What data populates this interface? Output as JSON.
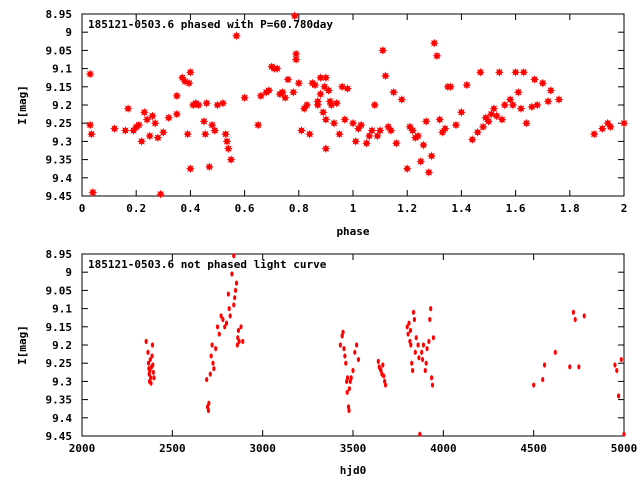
{
  "chart_data": [
    {
      "type": "scatter",
      "title": "185121-0503.6 phased with P=60.780day",
      "xlabel": "phase",
      "ylabel": "I[mag]",
      "xlim": [
        0,
        2
      ],
      "ylim": [
        9.45,
        8.95
      ],
      "y_inverted": true,
      "grid": false,
      "legend": "none",
      "marker_color": "#ff0000",
      "marker": "star",
      "x_ticks": [
        "0",
        "0.2",
        "0.4",
        "0.6",
        "0.8",
        "1",
        "1.2",
        "1.4",
        "1.6",
        "1.8",
        "2"
      ],
      "y_ticks": [
        "8.95",
        "9",
        "9.05",
        "9.1",
        "9.15",
        "9.2",
        "9.25",
        "9.3",
        "9.35",
        "9.4",
        "9.45"
      ],
      "points": [
        [
          0.03,
          9.115
        ],
        [
          0.03,
          9.255
        ],
        [
          0.035,
          9.28
        ],
        [
          0.04,
          9.44
        ],
        [
          0.12,
          9.265
        ],
        [
          0.16,
          9.27
        ],
        [
          0.17,
          9.21
        ],
        [
          0.19,
          9.27
        ],
        [
          0.2,
          9.26
        ],
        [
          0.21,
          9.255
        ],
        [
          0.22,
          9.3
        ],
        [
          0.23,
          9.22
        ],
        [
          0.24,
          9.24
        ],
        [
          0.25,
          9.285
        ],
        [
          0.26,
          9.23
        ],
        [
          0.27,
          9.25
        ],
        [
          0.28,
          9.29
        ],
        [
          0.29,
          9.445
        ],
        [
          0.3,
          9.275
        ],
        [
          0.32,
          9.235
        ],
        [
          0.35,
          9.175
        ],
        [
          0.35,
          9.225
        ],
        [
          0.37,
          9.125
        ],
        [
          0.38,
          9.135
        ],
        [
          0.39,
          9.28
        ],
        [
          0.395,
          9.14
        ],
        [
          0.4,
          9.375
        ],
        [
          0.4,
          9.11
        ],
        [
          0.41,
          9.2
        ],
        [
          0.42,
          9.195
        ],
        [
          0.43,
          9.2
        ],
        [
          0.45,
          9.245
        ],
        [
          0.455,
          9.28
        ],
        [
          0.46,
          9.195
        ],
        [
          0.47,
          9.37
        ],
        [
          0.48,
          9.255
        ],
        [
          0.49,
          9.27
        ],
        [
          0.5,
          9.2
        ],
        [
          0.52,
          9.195
        ],
        [
          0.53,
          9.28
        ],
        [
          0.535,
          9.3
        ],
        [
          0.54,
          9.32
        ],
        [
          0.55,
          9.35
        ],
        [
          0.57,
          9.01
        ],
        [
          0.6,
          9.18
        ],
        [
          0.65,
          9.255
        ],
        [
          0.66,
          9.175
        ],
        [
          0.68,
          9.165
        ],
        [
          0.69,
          9.16
        ],
        [
          0.7,
          9.095
        ],
        [
          0.71,
          9.1
        ],
        [
          0.72,
          9.1
        ],
        [
          0.73,
          9.17
        ],
        [
          0.74,
          9.165
        ],
        [
          0.75,
          9.18
        ],
        [
          0.76,
          9.13
        ],
        [
          0.78,
          9.165
        ],
        [
          0.785,
          8.955
        ],
        [
          0.79,
          9.06
        ],
        [
          0.79,
          9.075
        ],
        [
          0.8,
          9.14
        ],
        [
          0.81,
          9.27
        ],
        [
          0.82,
          9.21
        ],
        [
          0.83,
          9.2
        ],
        [
          0.84,
          9.28
        ],
        [
          0.85,
          9.14
        ],
        [
          0.86,
          9.145
        ],
        [
          0.87,
          9.19
        ],
        [
          0.87,
          9.2
        ],
        [
          0.88,
          9.125
        ],
        [
          0.88,
          9.17
        ],
        [
          0.89,
          9.22
        ],
        [
          0.895,
          9.15
        ],
        [
          0.9,
          9.125
        ],
        [
          0.9,
          9.24
        ],
        [
          0.9,
          9.32
        ],
        [
          0.91,
          9.16
        ],
        [
          0.915,
          9.19
        ],
        [
          0.92,
          9.2
        ],
        [
          0.93,
          9.25
        ],
        [
          0.94,
          9.195
        ],
        [
          0.95,
          9.28
        ],
        [
          0.96,
          9.15
        ],
        [
          0.97,
          9.24
        ],
        [
          0.98,
          9.155
        ],
        [
          1.0,
          9.25
        ],
        [
          1.01,
          9.3
        ],
        [
          1.02,
          9.265
        ],
        [
          1.03,
          9.255
        ],
        [
          1.05,
          9.305
        ],
        [
          1.06,
          9.285
        ],
        [
          1.07,
          9.27
        ],
        [
          1.08,
          9.2
        ],
        [
          1.09,
          9.285
        ],
        [
          1.1,
          9.27
        ],
        [
          1.11,
          9.05
        ],
        [
          1.12,
          9.12
        ],
        [
          1.13,
          9.26
        ],
        [
          1.14,
          9.27
        ],
        [
          1.15,
          9.165
        ],
        [
          1.16,
          9.305
        ],
        [
          1.18,
          9.185
        ],
        [
          1.2,
          9.375
        ],
        [
          1.21,
          9.26
        ],
        [
          1.22,
          9.27
        ],
        [
          1.23,
          9.29
        ],
        [
          1.24,
          9.285
        ],
        [
          1.25,
          9.355
        ],
        [
          1.26,
          9.31
        ],
        [
          1.27,
          9.245
        ],
        [
          1.28,
          9.385
        ],
        [
          1.29,
          9.34
        ],
        [
          1.3,
          9.03
        ],
        [
          1.31,
          9.065
        ],
        [
          1.32,
          9.24
        ],
        [
          1.33,
          9.275
        ],
        [
          1.34,
          9.265
        ],
        [
          1.35,
          9.15
        ],
        [
          1.36,
          9.15
        ],
        [
          1.38,
          9.255
        ],
        [
          1.4,
          9.22
        ],
        [
          1.42,
          9.145
        ],
        [
          1.44,
          9.295
        ],
        [
          1.46,
          9.275
        ],
        [
          1.47,
          9.11
        ],
        [
          1.48,
          9.26
        ],
        [
          1.49,
          9.235
        ],
        [
          1.5,
          9.245
        ],
        [
          1.51,
          9.225
        ],
        [
          1.52,
          9.21
        ],
        [
          1.53,
          9.23
        ],
        [
          1.54,
          9.11
        ],
        [
          1.55,
          9.24
        ],
        [
          1.56,
          9.2
        ],
        [
          1.58,
          9.185
        ],
        [
          1.59,
          9.2
        ],
        [
          1.6,
          9.11
        ],
        [
          1.61,
          9.165
        ],
        [
          1.62,
          9.21
        ],
        [
          1.63,
          9.11
        ],
        [
          1.64,
          9.25
        ],
        [
          1.66,
          9.205
        ],
        [
          1.67,
          9.13
        ],
        [
          1.68,
          9.2
        ],
        [
          1.7,
          9.14
        ],
        [
          1.72,
          9.19
        ],
        [
          1.73,
          9.16
        ],
        [
          1.76,
          9.185
        ],
        [
          1.89,
          9.28
        ],
        [
          1.92,
          9.265
        ],
        [
          1.94,
          9.25
        ],
        [
          1.95,
          9.26
        ],
        [
          2.0,
          9.25
        ]
      ]
    },
    {
      "type": "scatter",
      "title": "185121-0503.6 not phased light curve",
      "xlabel": "hjd0",
      "ylabel": "I[mag]",
      "xlim": [
        2000,
        5000
      ],
      "ylim": [
        9.45,
        8.95
      ],
      "y_inverted": true,
      "grid": false,
      "legend": "none",
      "marker_color": "#ff0000",
      "marker": "dot",
      "x_ticks": [
        "2000",
        "2500",
        "3000",
        "3500",
        "4000",
        "4500",
        "5000"
      ],
      "y_ticks": [
        "8.95",
        "9",
        "9.05",
        "9.1",
        "9.15",
        "9.2",
        "9.25",
        "9.3",
        "9.35",
        "9.4",
        "9.45"
      ],
      "points": [
        [
          2355,
          9.19
        ],
        [
          2365,
          9.22
        ],
        [
          2368,
          9.25
        ],
        [
          2370,
          9.265
        ],
        [
          2372,
          9.28
        ],
        [
          2374,
          9.3
        ],
        [
          2376,
          9.27
        ],
        [
          2378,
          9.24
        ],
        [
          2380,
          9.29
        ],
        [
          2382,
          9.305
        ],
        [
          2385,
          9.26
        ],
        [
          2388,
          9.23
        ],
        [
          2390,
          9.2
        ],
        [
          2392,
          9.255
        ],
        [
          2395,
          9.275
        ],
        [
          2398,
          9.29
        ],
        [
          2690,
          9.295
        ],
        [
          2695,
          9.37
        ],
        [
          2700,
          9.38
        ],
        [
          2702,
          9.36
        ],
        [
          2710,
          9.28
        ],
        [
          2715,
          9.23
        ],
        [
          2720,
          9.2
        ],
        [
          2725,
          9.25
        ],
        [
          2730,
          9.265
        ],
        [
          2740,
          9.21
        ],
        [
          2750,
          9.15
        ],
        [
          2760,
          9.17
        ],
        [
          2770,
          9.12
        ],
        [
          2780,
          9.13
        ],
        [
          2790,
          9.15
        ],
        [
          2800,
          9.14
        ],
        [
          2810,
          9.06
        ],
        [
          2815,
          9.1
        ],
        [
          2820,
          9.12
        ],
        [
          2830,
          9.005
        ],
        [
          2840,
          9.09
        ],
        [
          2845,
          9.07
        ],
        [
          2850,
          9.05
        ],
        [
          2855,
          9.03
        ],
        [
          2860,
          9.2
        ],
        [
          2862,
          9.18
        ],
        [
          2866,
          9.16
        ],
        [
          2870,
          9.19
        ],
        [
          2880,
          9.15
        ],
        [
          2890,
          9.19
        ],
        [
          2840,
          8.955
        ],
        [
          3430,
          9.2
        ],
        [
          3440,
          9.175
        ],
        [
          3445,
          9.165
        ],
        [
          3450,
          9.21
        ],
        [
          3455,
          9.23
        ],
        [
          3460,
          9.25
        ],
        [
          3465,
          9.3
        ],
        [
          3468,
          9.33
        ],
        [
          3470,
          9.29
        ],
        [
          3475,
          9.37
        ],
        [
          3478,
          9.38
        ],
        [
          3480,
          9.32
        ],
        [
          3485,
          9.3
        ],
        [
          3490,
          9.29
        ],
        [
          3500,
          9.27
        ],
        [
          3510,
          9.22
        ],
        [
          3520,
          9.2
        ],
        [
          3530,
          9.24
        ],
        [
          3640,
          9.245
        ],
        [
          3645,
          9.26
        ],
        [
          3650,
          9.265
        ],
        [
          3655,
          9.27
        ],
        [
          3660,
          9.28
        ],
        [
          3665,
          9.255
        ],
        [
          3670,
          9.285
        ],
        [
          3675,
          9.3
        ],
        [
          3680,
          9.31
        ],
        [
          3800,
          9.15
        ],
        [
          3805,
          9.17
        ],
        [
          3810,
          9.14
        ],
        [
          3815,
          9.19
        ],
        [
          3818,
          9.16
        ],
        [
          3820,
          9.2
        ],
        [
          3825,
          9.25
        ],
        [
          3830,
          9.27
        ],
        [
          3835,
          9.11
        ],
        [
          3840,
          9.13
        ],
        [
          3845,
          9.22
        ],
        [
          3850,
          9.18
        ],
        [
          3860,
          9.2
        ],
        [
          3865,
          9.235
        ],
        [
          3880,
          9.22
        ],
        [
          3885,
          9.24
        ],
        [
          3890,
          9.2
        ],
        [
          3900,
          9.27
        ],
        [
          3905,
          9.25
        ],
        [
          3910,
          9.21
        ],
        [
          3920,
          9.19
        ],
        [
          3925,
          9.13
        ],
        [
          3930,
          9.1
        ],
        [
          3935,
          9.29
        ],
        [
          3940,
          9.31
        ],
        [
          3945,
          9.18
        ],
        [
          3870,
          9.445
        ],
        [
          4500,
          9.31
        ],
        [
          4550,
          9.295
        ],
        [
          4560,
          9.255
        ],
        [
          4620,
          9.22
        ],
        [
          4700,
          9.26
        ],
        [
          4720,
          9.11
        ],
        [
          4730,
          9.13
        ],
        [
          4750,
          9.26
        ],
        [
          4780,
          9.12
        ],
        [
          4950,
          9.255
        ],
        [
          4960,
          9.27
        ],
        [
          4970,
          9.34
        ],
        [
          4985,
          9.24
        ],
        [
          5000,
          9.445
        ]
      ]
    }
  ]
}
